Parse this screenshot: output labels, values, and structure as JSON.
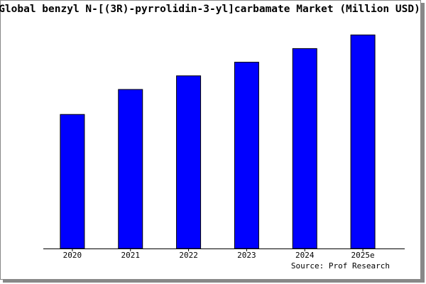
{
  "chart_data": {
    "type": "bar",
    "title": "Global benzyl N-[(3R)-pyrrolidin-3-yl]carbamate Market (Million USD)",
    "categories": [
      "2020",
      "2021",
      "2022",
      "2023",
      "2024",
      "2025e"
    ],
    "values": [
      59,
      70,
      76,
      82,
      88,
      94
    ],
    "color": "#0000ff",
    "ylim": [
      0,
      100
    ],
    "source": "Source: Prof Research"
  }
}
